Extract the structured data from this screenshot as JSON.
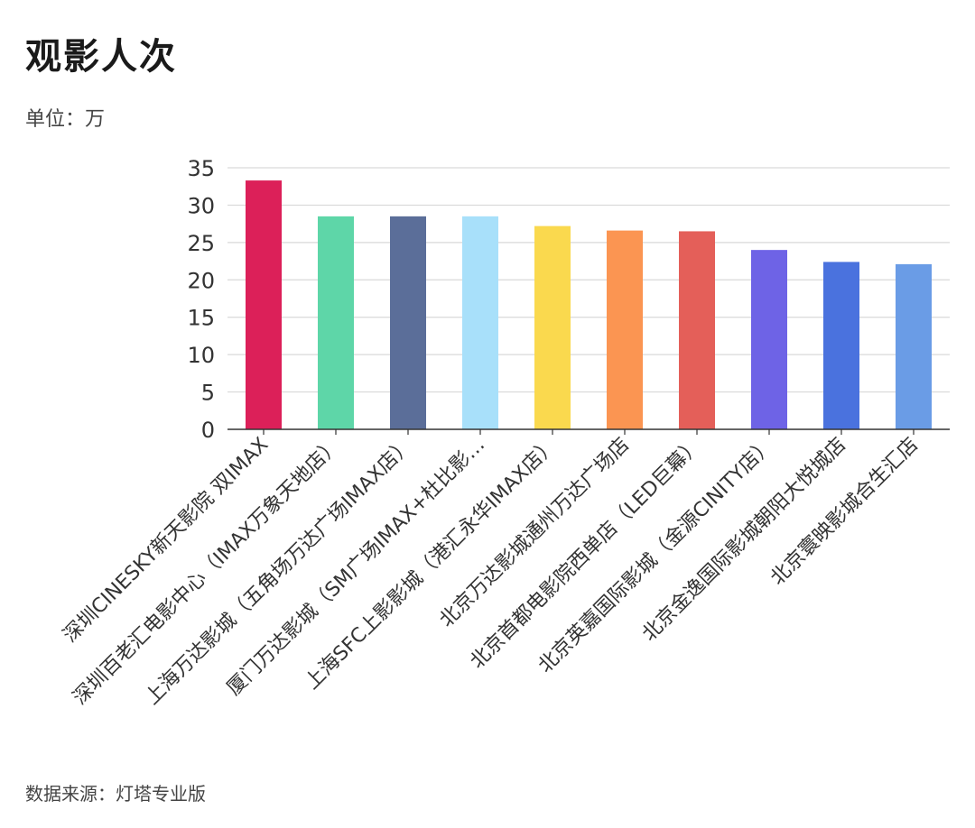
{
  "header": {
    "title": "观影人次",
    "unit": "单位：万"
  },
  "footer": {
    "source": "数据来源：灯塔专业版"
  },
  "chart_data": {
    "type": "bar",
    "title": "观影人次",
    "ylabel": "",
    "xlabel": "",
    "ylim": [
      0,
      35
    ],
    "yticks": [
      0,
      5,
      10,
      15,
      20,
      25,
      30,
      35
    ],
    "grid": true,
    "categories": [
      "深圳CINESKY新天影院 双IMAX",
      "深圳百老汇电影中心（IMAX万象天地店）",
      "上海万达影城（五角场万达广场IMAX店）",
      "厦门万达影城（SM广场IMAX+杜比影…",
      "上海SFC上影影城（港汇永华IMAX店）",
      "北京万达影城通州万达广场店",
      "北京首都电影院西单店（LED巨幕）",
      "北京英嘉国际影城（金源CINITY店）",
      "北京金逸国际影城朝阳大悦城店",
      "北京寰映影城合生汇店"
    ],
    "values": [
      33.3,
      28.5,
      28.5,
      28.5,
      27.2,
      26.6,
      26.5,
      24.0,
      22.4,
      22.1
    ],
    "colors": [
      "#DC2059",
      "#5ED6A8",
      "#5B6E99",
      "#A8E0FA",
      "#FAD94E",
      "#FB9552",
      "#E45F59",
      "#6E63E6",
      "#4A72DE",
      "#6A9CE6"
    ]
  }
}
